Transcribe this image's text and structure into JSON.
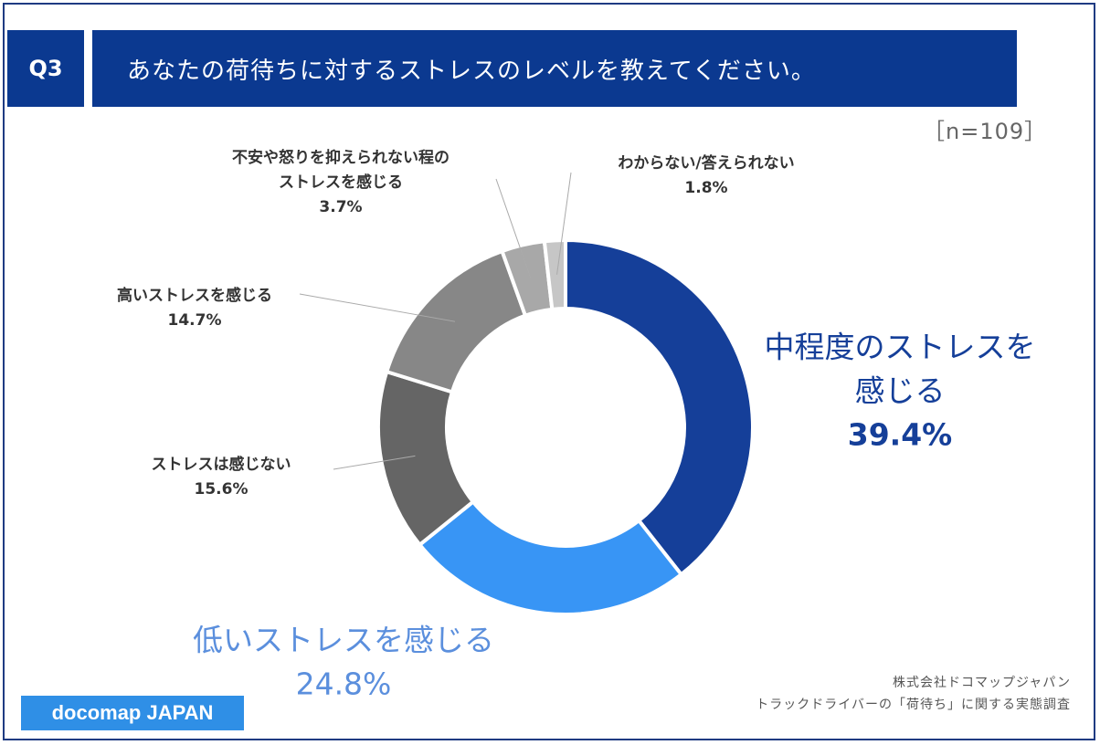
{
  "header": {
    "question_label": "Q3",
    "title": "あなたの荷待ちに対するストレスのレベルを教えてください。"
  },
  "sample_size": "［n=109］",
  "chart_data": {
    "type": "pie",
    "subtype": "donut",
    "slices": [
      {
        "label_lines": [
          "中程度のストレスを",
          "感じる"
        ],
        "value": 39.4,
        "value_text": "39.4%",
        "color": "#153f99"
      },
      {
        "label_lines": [
          "低いストレスを感じる"
        ],
        "value": 24.8,
        "value_text": "24.8%",
        "color": "#3895f5"
      },
      {
        "label_lines": [
          "ストレスは感じない"
        ],
        "value": 15.6,
        "value_text": "15.6%",
        "color": "#656565"
      },
      {
        "label_lines": [
          "高いストレスを感じる"
        ],
        "value": 14.7,
        "value_text": "14.7%",
        "color": "#878787"
      },
      {
        "label_lines": [
          "不安や怒りを抑えられない程の",
          "ストレスを感じる"
        ],
        "value": 3.7,
        "value_text": "3.7%",
        "color": "#a8a8a8"
      },
      {
        "label_lines": [
          "わからない/答えられない"
        ],
        "value": 1.8,
        "value_text": "1.8%",
        "color": "#c6c6c6"
      }
    ]
  },
  "footer": {
    "logo": "docomap JAPAN",
    "credit_line1": "株式会社ドコマップジャパン",
    "credit_line2": "トラックドライバーの「荷待ち」に関する実態調査"
  }
}
